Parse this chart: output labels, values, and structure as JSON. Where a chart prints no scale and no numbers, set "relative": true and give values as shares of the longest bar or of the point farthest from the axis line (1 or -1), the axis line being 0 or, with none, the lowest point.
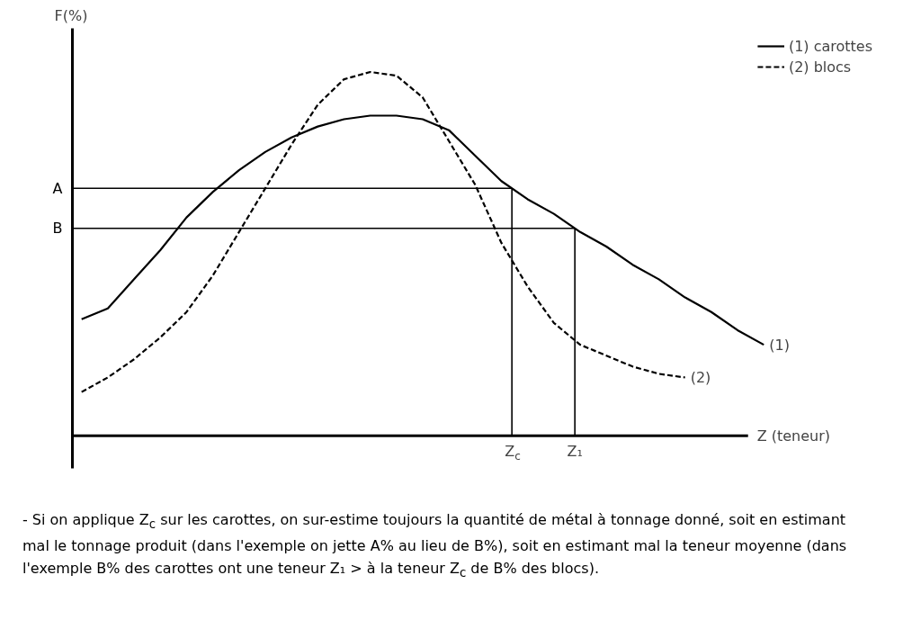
{
  "chart_data": {
    "type": "line",
    "relative": true,
    "ylabel": "F(%)",
    "xlabel": "Z (teneur)",
    "legend": "top right",
    "categories": [
      null,
      null,
      null,
      null,
      null,
      null,
      null,
      null,
      null,
      null,
      null,
      null,
      null,
      null,
      null,
      null,
      null,
      null,
      null,
      null,
      null,
      null,
      null,
      null,
      null,
      null,
      null
    ],
    "series": [
      {
        "name": "(1) carottes",
        "color": "#000000",
        "line_style": "solid",
        "values": [
          0.32,
          0.35,
          0.43,
          0.51,
          0.6,
          0.67,
          0.73,
          0.78,
          0.82,
          0.85,
          0.87,
          0.88,
          0.88,
          0.87,
          0.84,
          0.77,
          0.7,
          0.65,
          0.61,
          0.56,
          0.52,
          0.47,
          0.43,
          0.38,
          0.34,
          0.29,
          0.25
        ]
      },
      {
        "name": "(2) blocs",
        "color": "#000000",
        "line_style": "dashed",
        "values": [
          0.12,
          0.16,
          0.21,
          0.27,
          0.34,
          0.44,
          0.56,
          0.68,
          0.8,
          0.91,
          0.98,
          1,
          0.99,
          0.93,
          0.81,
          0.69,
          0.53,
          0.41,
          0.31,
          0.25,
          0.22,
          0.19,
          0.17,
          0.16,
          null,
          null,
          null
        ]
      }
    ],
    "ref_lines": [
      {
        "axis": "y",
        "value": 0.68,
        "label": "A"
      },
      {
        "axis": "y",
        "value": 0.57,
        "label": "B"
      }
    ],
    "annotations": [
      "Z$_{c}$",
      "Z₁",
      "(1)",
      "(2)",
      "- Si on applique Z$_{c}$ sur les carottes, on sur-estime toujours la quantité de métal à tonnage donné, soit en estimant mal le tonnage produit (dans l'exemple on jette A% au lieu de B%), soit en estimant mal la teneur moyenne (dans l'exemple B% des carottes ont une teneur Z₁ > à la teneur Z$_{c}$ de B% des blocs)."
    ]
  }
}
